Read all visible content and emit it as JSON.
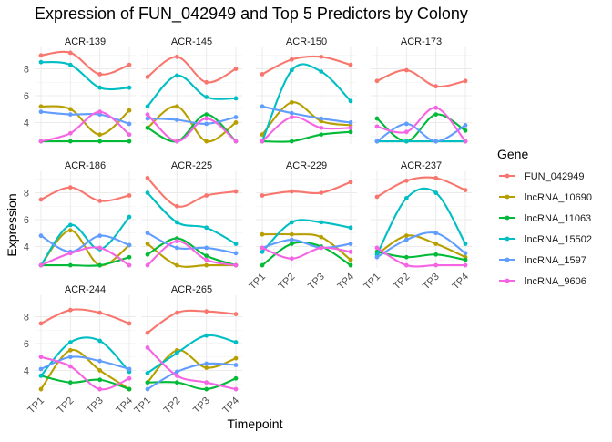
{
  "chart_data": {
    "type": "line",
    "title": "Expression of FUN_042949 and Top 5 Predictors by Colony",
    "xlabel": "Timepoint",
    "ylabel": "Expression",
    "x": [
      "TP1",
      "TP2",
      "TP3",
      "TP4"
    ],
    "yticks": [
      4,
      6,
      8
    ],
    "ylim": [
      2.4,
      9.6
    ],
    "grid": true,
    "smooth": true,
    "legend": {
      "title": "Gene",
      "position": "right",
      "entries": [
        {
          "name": "FUN_042949",
          "color": "#F8766D"
        },
        {
          "name": "lncRNA_10690",
          "color": "#B79F00"
        },
        {
          "name": "lncRNA_11063",
          "color": "#00BA38"
        },
        {
          "name": "lncRNA_15502",
          "color": "#00BFC4"
        },
        {
          "name": "lncRNA_1597",
          "color": "#619CFF"
        },
        {
          "name": "lncRNA_9606",
          "color": "#F564E3"
        }
      ]
    },
    "panels": [
      {
        "title": "ACR-139",
        "series": [
          {
            "gene": "FUN_042949",
            "values": [
              9.0,
              9.2,
              7.6,
              8.3
            ]
          },
          {
            "gene": "lncRNA_10690",
            "values": [
              5.2,
              5.0,
              3.1,
              4.9
            ]
          },
          {
            "gene": "lncRNA_11063",
            "values": [
              2.6,
              2.6,
              2.6,
              2.6
            ]
          },
          {
            "gene": "lncRNA_15502",
            "values": [
              8.5,
              8.3,
              6.6,
              6.6
            ]
          },
          {
            "gene": "lncRNA_1597",
            "values": [
              4.8,
              4.6,
              4.6,
              3.9
            ]
          },
          {
            "gene": "lncRNA_9606",
            "values": [
              2.6,
              3.2,
              4.8,
              3.1
            ]
          }
        ]
      },
      {
        "title": "ACR-145",
        "series": [
          {
            "gene": "FUN_042949",
            "values": [
              7.4,
              8.9,
              7.0,
              8.0
            ]
          },
          {
            "gene": "lncRNA_10690",
            "values": [
              3.6,
              5.2,
              2.6,
              4.0
            ]
          },
          {
            "gene": "lncRNA_11063",
            "values": [
              3.6,
              2.6,
              4.6,
              2.6
            ]
          },
          {
            "gene": "lncRNA_15502",
            "values": [
              5.2,
              7.5,
              5.9,
              5.8
            ]
          },
          {
            "gene": "lncRNA_1597",
            "values": [
              4.3,
              4.2,
              3.9,
              4.4
            ]
          },
          {
            "gene": "lncRNA_9606",
            "values": [
              4.6,
              2.6,
              4.3,
              2.6
            ]
          }
        ]
      },
      {
        "title": "ACR-150",
        "series": [
          {
            "gene": "FUN_042949",
            "values": [
              7.6,
              8.7,
              8.9,
              8.3
            ]
          },
          {
            "gene": "lncRNA_10690",
            "values": [
              3.1,
              5.5,
              4.1,
              3.8
            ]
          },
          {
            "gene": "lncRNA_11063",
            "values": [
              2.6,
              2.6,
              3.1,
              3.3
            ]
          },
          {
            "gene": "lncRNA_15502",
            "values": [
              2.6,
              7.9,
              7.8,
              5.6
            ]
          },
          {
            "gene": "lncRNA_1597",
            "values": [
              5.2,
              4.7,
              4.3,
              4.0
            ]
          },
          {
            "gene": "lncRNA_9606",
            "values": [
              2.6,
              4.4,
              3.6,
              3.6
            ]
          }
        ]
      },
      {
        "title": "ACR-173",
        "series": [
          {
            "gene": "FUN_042949",
            "values": [
              7.1,
              7.9,
              6.7,
              7.1
            ]
          },
          {
            "gene": "lncRNA_10690",
            "values": [
              2.6,
              2.6,
              2.6,
              2.6
            ]
          },
          {
            "gene": "lncRNA_11063",
            "values": [
              4.3,
              2.6,
              4.6,
              3.4
            ]
          },
          {
            "gene": "lncRNA_15502",
            "values": [
              2.6,
              2.6,
              2.6,
              2.6
            ]
          },
          {
            "gene": "lncRNA_1597",
            "values": [
              2.6,
              3.9,
              2.6,
              3.8
            ]
          },
          {
            "gene": "lncRNA_9606",
            "values": [
              3.7,
              3.3,
              5.1,
              2.6
            ]
          }
        ]
      },
      {
        "title": "ACR-186",
        "series": [
          {
            "gene": "FUN_042949",
            "values": [
              7.5,
              8.4,
              7.4,
              7.8
            ]
          },
          {
            "gene": "lncRNA_10690",
            "values": [
              2.6,
              5.2,
              2.6,
              4.1
            ]
          },
          {
            "gene": "lncRNA_11063",
            "values": [
              2.6,
              2.6,
              2.6,
              3.2
            ]
          },
          {
            "gene": "lncRNA_15502",
            "values": [
              2.6,
              5.6,
              3.8,
              6.2
            ]
          },
          {
            "gene": "lncRNA_1597",
            "values": [
              4.8,
              3.6,
              4.8,
              4.1
            ]
          },
          {
            "gene": "lncRNA_9606",
            "values": [
              2.6,
              3.5,
              3.9,
              2.6
            ]
          }
        ]
      },
      {
        "title": "ACR-225",
        "series": [
          {
            "gene": "FUN_042949",
            "values": [
              9.1,
              7.0,
              7.8,
              8.1
            ]
          },
          {
            "gene": "lncRNA_10690",
            "values": [
              4.2,
              2.6,
              2.6,
              2.6
            ]
          },
          {
            "gene": "lncRNA_11063",
            "values": [
              3.4,
              4.6,
              3.3,
              2.6
            ]
          },
          {
            "gene": "lncRNA_15502",
            "values": [
              8.0,
              5.8,
              5.4,
              4.2
            ]
          },
          {
            "gene": "lncRNA_1597",
            "values": [
              5.0,
              3.9,
              3.9,
              3.5
            ]
          },
          {
            "gene": "lncRNA_9606",
            "values": [
              2.6,
              4.4,
              3.0,
              2.6
            ]
          }
        ]
      },
      {
        "title": "ACR-229",
        "series": [
          {
            "gene": "FUN_042949",
            "values": [
              7.8,
              8.1,
              8.0,
              8.8
            ]
          },
          {
            "gene": "lncRNA_10690",
            "values": [
              4.9,
              4.9,
              4.7,
              3.0
            ]
          },
          {
            "gene": "lncRNA_11063",
            "values": [
              2.6,
              4.2,
              4.0,
              2.6
            ]
          },
          {
            "gene": "lncRNA_15502",
            "values": [
              3.6,
              5.8,
              5.8,
              5.4
            ]
          },
          {
            "gene": "lncRNA_1597",
            "values": [
              3.9,
              4.5,
              3.9,
              4.2
            ]
          },
          {
            "gene": "lncRNA_9606",
            "values": [
              3.9,
              3.1,
              3.9,
              3.6
            ]
          }
        ]
      },
      {
        "title": "ACR-237",
        "series": [
          {
            "gene": "FUN_042949",
            "values": [
              7.7,
              8.9,
              9.1,
              8.2
            ]
          },
          {
            "gene": "lncRNA_10690",
            "values": [
              3.4,
              4.8,
              4.2,
              3.2
            ]
          },
          {
            "gene": "lncRNA_11063",
            "values": [
              3.6,
              3.2,
              3.4,
              3.0
            ]
          },
          {
            "gene": "lncRNA_15502",
            "values": [
              3.4,
              7.6,
              8.0,
              4.2
            ]
          },
          {
            "gene": "lncRNA_1597",
            "values": [
              3.2,
              4.5,
              5.0,
              3.5
            ]
          },
          {
            "gene": "lncRNA_9606",
            "values": [
              3.9,
              2.6,
              2.6,
              2.6
            ]
          }
        ]
      },
      {
        "title": "ACR-244",
        "series": [
          {
            "gene": "FUN_042949",
            "values": [
              7.5,
              8.5,
              8.3,
              7.5
            ]
          },
          {
            "gene": "lncRNA_10690",
            "values": [
              2.6,
              5.5,
              4.0,
              2.6
            ]
          },
          {
            "gene": "lncRNA_11063",
            "values": [
              3.6,
              3.1,
              3.3,
              2.6
            ]
          },
          {
            "gene": "lncRNA_15502",
            "values": [
              3.6,
              6.1,
              6.2,
              3.9
            ]
          },
          {
            "gene": "lncRNA_1597",
            "values": [
              4.1,
              5.0,
              4.7,
              4.1
            ]
          },
          {
            "gene": "lncRNA_9606",
            "values": [
              5.0,
              4.3,
              2.6,
              3.4
            ]
          }
        ]
      },
      {
        "title": "ACR-265",
        "series": [
          {
            "gene": "FUN_042949",
            "values": [
              6.8,
              8.3,
              8.4,
              8.2
            ]
          },
          {
            "gene": "lncRNA_10690",
            "values": [
              3.1,
              5.5,
              4.2,
              4.9
            ]
          },
          {
            "gene": "lncRNA_11063",
            "values": [
              3.1,
              3.1,
              2.6,
              3.4
            ]
          },
          {
            "gene": "lncRNA_15502",
            "values": [
              3.8,
              5.3,
              6.6,
              6.1
            ]
          },
          {
            "gene": "lncRNA_1597",
            "values": [
              2.6,
              3.9,
              4.5,
              4.4
            ]
          },
          {
            "gene": "lncRNA_9606",
            "values": [
              5.7,
              3.6,
              3.1,
              2.6
            ]
          }
        ]
      }
    ]
  }
}
